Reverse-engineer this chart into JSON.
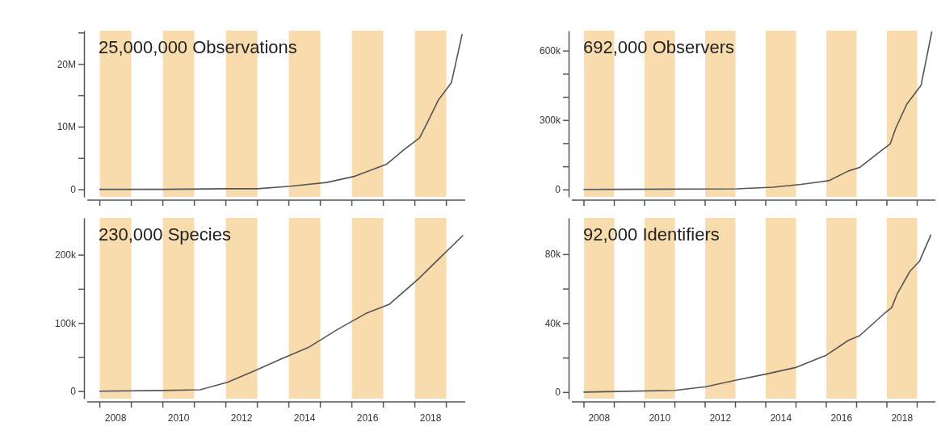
{
  "chart_data": [
    {
      "type": "line",
      "annotations": [
        "25,000,000 Observations"
      ],
      "color": "#555555",
      "tick_labels": "y",
      "x": [
        2008,
        2010,
        2012,
        2013,
        2014.06,
        2015.2,
        2016.1,
        2017.1,
        2017.65,
        2018.15,
        2018.47,
        2018.74,
        2019.16,
        2019.5
      ],
      "values": [
        0,
        0,
        100000,
        100000,
        500000,
        1100000,
        2100000,
        4000000,
        6300000,
        8200000,
        11400000,
        14200000,
        17000000,
        24700000
      ],
      "xlim": [
        2007.6,
        2019.6
      ],
      "ylim": [
        -1200000,
        25300000
      ],
      "xticks": [
        {
          "value": 2008,
          "label": null
        },
        {
          "value": 2009,
          "label": null
        },
        {
          "value": 2010,
          "label": null
        },
        {
          "value": 2011,
          "label": null
        },
        {
          "value": 2012,
          "label": null
        },
        {
          "value": 2013,
          "label": null
        },
        {
          "value": 2014,
          "label": null
        },
        {
          "value": 2015,
          "label": null
        },
        {
          "value": 2016,
          "label": null
        },
        {
          "value": 2017,
          "label": null
        },
        {
          "value": 2018,
          "label": null
        },
        {
          "value": 2019,
          "label": null
        }
      ],
      "yticks": [
        {
          "value": 0,
          "label": "0"
        },
        {
          "value": 5000000,
          "label": null
        },
        {
          "value": 10000000,
          "label": "10M"
        },
        {
          "value": 15000000,
          "label": null
        },
        {
          "value": 20000000,
          "label": "20M"
        },
        {
          "value": 25000000,
          "label": null
        }
      ],
      "bands": [
        {
          "axis": "x",
          "from": 2008,
          "to": 2009,
          "color": "#f9dcae"
        },
        {
          "axis": "x",
          "from": 2010,
          "to": 2011,
          "color": "#f9dcae"
        },
        {
          "axis": "x",
          "from": 2012,
          "to": 2013,
          "color": "#f9dcae"
        },
        {
          "axis": "x",
          "from": 2014,
          "to": 2015,
          "color": "#f9dcae"
        },
        {
          "axis": "x",
          "from": 2016,
          "to": 2017,
          "color": "#f9dcae"
        },
        {
          "axis": "x",
          "from": 2018,
          "to": 2019,
          "color": "#f9dcae"
        }
      ]
    },
    {
      "type": "line",
      "annotations": [
        "692,000 Observers"
      ],
      "color": "#555555",
      "tick_labels": "y",
      "x": [
        2008,
        2013.03,
        2014.23,
        2015.16,
        2016.08,
        2016.73,
        2017.1,
        2017.79,
        2018.11,
        2018.3,
        2018.66,
        2019.13,
        2019.48
      ],
      "values": [
        0,
        3000,
        10000,
        22000,
        38000,
        80000,
        95000,
        165000,
        197000,
        267000,
        369000,
        451000,
        680000
      ],
      "xlim": [
        2007.6,
        2019.6
      ],
      "ylim": [
        -32000,
        686000
      ],
      "xticks": [
        {
          "value": 2008,
          "label": null
        },
        {
          "value": 2009,
          "label": null
        },
        {
          "value": 2010,
          "label": null
        },
        {
          "value": 2011,
          "label": null
        },
        {
          "value": 2012,
          "label": null
        },
        {
          "value": 2013,
          "label": null
        },
        {
          "value": 2014,
          "label": null
        },
        {
          "value": 2015,
          "label": null
        },
        {
          "value": 2016,
          "label": null
        },
        {
          "value": 2017,
          "label": null
        },
        {
          "value": 2018,
          "label": null
        },
        {
          "value": 2019,
          "label": null
        }
      ],
      "yticks": [
        {
          "value": 0,
          "label": "0"
        },
        {
          "value": 100000,
          "label": null
        },
        {
          "value": 200000,
          "label": null
        },
        {
          "value": 300000,
          "label": "300k"
        },
        {
          "value": 400000,
          "label": null
        },
        {
          "value": 500000,
          "label": null
        },
        {
          "value": 600000,
          "label": "600k"
        }
      ],
      "bands": [
        {
          "axis": "x",
          "from": 2008,
          "to": 2009,
          "color": "#f9dcae"
        },
        {
          "axis": "x",
          "from": 2010,
          "to": 2011,
          "color": "#f9dcae"
        },
        {
          "axis": "x",
          "from": 2012,
          "to": 2013,
          "color": "#f9dcae"
        },
        {
          "axis": "x",
          "from": 2014,
          "to": 2015,
          "color": "#f9dcae"
        },
        {
          "axis": "x",
          "from": 2016,
          "to": 2017,
          "color": "#f9dcae"
        },
        {
          "axis": "x",
          "from": 2018,
          "to": 2019,
          "color": "#f9dcae"
        }
      ]
    },
    {
      "type": "line",
      "annotations": [
        "230,000 Species"
      ],
      "color": "#555555",
      "x": [
        2008,
        2009.99,
        2011.18,
        2012.05,
        2012.97,
        2013.7,
        2014.62,
        2015.53,
        2016.45,
        2017.18,
        2018.1,
        2018.74,
        2019.52
      ],
      "values": [
        0,
        1000,
        2000,
        13000,
        31000,
        46000,
        64000,
        90000,
        114000,
        127000,
        164000,
        193000,
        228000
      ],
      "xlim": [
        2007.6,
        2019.6
      ],
      "ylim": [
        -11000,
        254000
      ],
      "xticks": [
        {
          "value": 2008,
          "label": null
        },
        {
          "value": 2008.5,
          "label": "2008"
        },
        {
          "value": 2009,
          "label": null
        },
        {
          "value": 2010,
          "label": null
        },
        {
          "value": 2010.5,
          "label": "2010"
        },
        {
          "value": 2011,
          "label": null
        },
        {
          "value": 2012,
          "label": null
        },
        {
          "value": 2012.5,
          "label": "2012"
        },
        {
          "value": 2013,
          "label": null
        },
        {
          "value": 2014,
          "label": null
        },
        {
          "value": 2014.5,
          "label": "2014"
        },
        {
          "value": 2015,
          "label": null
        },
        {
          "value": 2016,
          "label": null
        },
        {
          "value": 2016.5,
          "label": "2016"
        },
        {
          "value": 2017,
          "label": null
        },
        {
          "value": 2018,
          "label": null
        },
        {
          "value": 2018.5,
          "label": "2018"
        },
        {
          "value": 2019,
          "label": null
        }
      ],
      "yticks": [
        {
          "value": 0,
          "label": "0"
        },
        {
          "value": 50000,
          "label": null
        },
        {
          "value": 100000,
          "label": "100k"
        },
        {
          "value": 150000,
          "label": null
        },
        {
          "value": 200000,
          "label": "200k"
        }
      ],
      "bands": [
        {
          "axis": "x",
          "from": 2008,
          "to": 2009,
          "color": "#f9dcae"
        },
        {
          "axis": "x",
          "from": 2010,
          "to": 2011,
          "color": "#f9dcae"
        },
        {
          "axis": "x",
          "from": 2012,
          "to": 2013,
          "color": "#f9dcae"
        },
        {
          "axis": "x",
          "from": 2014,
          "to": 2015,
          "color": "#f9dcae"
        },
        {
          "axis": "x",
          "from": 2016,
          "to": 2017,
          "color": "#f9dcae"
        },
        {
          "axis": "x",
          "from": 2018,
          "to": 2019,
          "color": "#f9dcae"
        }
      ]
    },
    {
      "type": "line",
      "annotations": [
        "92,000 Identifiers"
      ],
      "color": "#555555",
      "x": [
        2008,
        2011,
        2012.02,
        2013.03,
        2014,
        2015.02,
        2016,
        2016.73,
        2017.1,
        2017.93,
        2018.16,
        2018.34,
        2018.76,
        2019.08,
        2019.45
      ],
      "values": [
        0,
        1000,
        3100,
        7000,
        10400,
        14400,
        21400,
        30000,
        32700,
        45800,
        49000,
        57000,
        70000,
        76000,
        91000
      ],
      "xlim": [
        2007.6,
        2019.6
      ],
      "ylim": [
        -3800,
        101000
      ],
      "xticks": [
        {
          "value": 2008,
          "label": null
        },
        {
          "value": 2008.5,
          "label": "2008"
        },
        {
          "value": 2009,
          "label": null
        },
        {
          "value": 2010,
          "label": null
        },
        {
          "value": 2010.5,
          "label": "2010"
        },
        {
          "value": 2011,
          "label": null
        },
        {
          "value": 2012,
          "label": null
        },
        {
          "value": 2012.5,
          "label": "2012"
        },
        {
          "value": 2013,
          "label": null
        },
        {
          "value": 2014,
          "label": null
        },
        {
          "value": 2014.5,
          "label": "2014"
        },
        {
          "value": 2015,
          "label": null
        },
        {
          "value": 2016,
          "label": null
        },
        {
          "value": 2016.5,
          "label": "2016"
        },
        {
          "value": 2017,
          "label": null
        },
        {
          "value": 2018,
          "label": null
        },
        {
          "value": 2018.5,
          "label": "2018"
        },
        {
          "value": 2019,
          "label": null
        }
      ],
      "yticks": [
        {
          "value": 0,
          "label": "0"
        },
        {
          "value": 20000,
          "label": null
        },
        {
          "value": 40000,
          "label": "40k"
        },
        {
          "value": 60000,
          "label": null
        },
        {
          "value": 80000,
          "label": "80k"
        }
      ],
      "bands": [
        {
          "axis": "x",
          "from": 2008,
          "to": 2009,
          "color": "#f9dcae"
        },
        {
          "axis": "x",
          "from": 2010,
          "to": 2011,
          "color": "#f9dcae"
        },
        {
          "axis": "x",
          "from": 2012,
          "to": 2013,
          "color": "#f9dcae"
        },
        {
          "axis": "x",
          "from": 2014,
          "to": 2015,
          "color": "#f9dcae"
        },
        {
          "axis": "x",
          "from": 2016,
          "to": 2017,
          "color": "#f9dcae"
        },
        {
          "axis": "x",
          "from": 2018,
          "to": 2019,
          "color": "#f9dcae"
        }
      ]
    }
  ]
}
